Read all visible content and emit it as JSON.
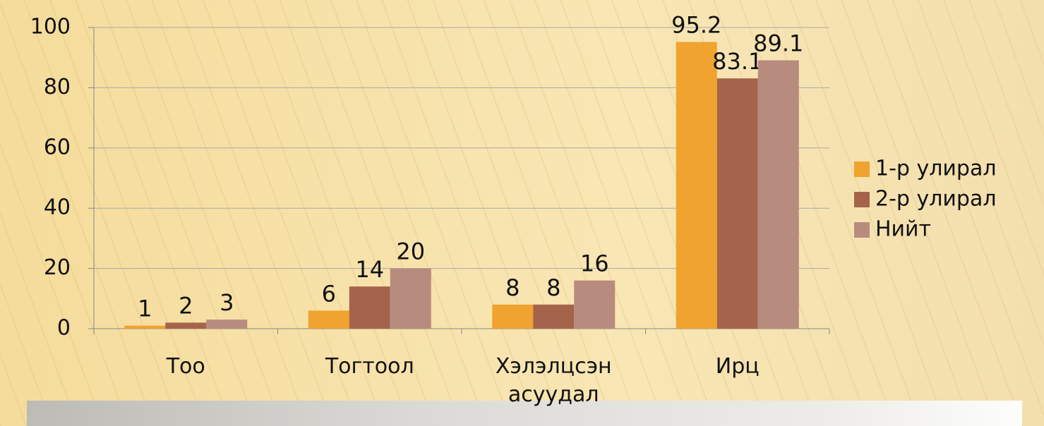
{
  "chart_data": {
    "type": "bar",
    "categories": [
      "Тоо",
      "Тогтоол",
      "Хэлэлцсэн асуудал",
      "Ирц"
    ],
    "series": [
      {
        "name": "1-р улирал",
        "color": "#f0a32f",
        "values": [
          1,
          6,
          8,
          95.2
        ]
      },
      {
        "name": "2-р улирал",
        "color": "#a5634b",
        "values": [
          2,
          14,
          8,
          83.1
        ]
      },
      {
        "name": "Нийт",
        "color": "#b88b7f",
        "values": [
          3,
          20,
          16,
          89.1
        ]
      }
    ],
    "ylim": [
      0,
      100
    ],
    "yticks": [
      0,
      20,
      40,
      60,
      80,
      100
    ],
    "grid": true,
    "legend": "right"
  }
}
